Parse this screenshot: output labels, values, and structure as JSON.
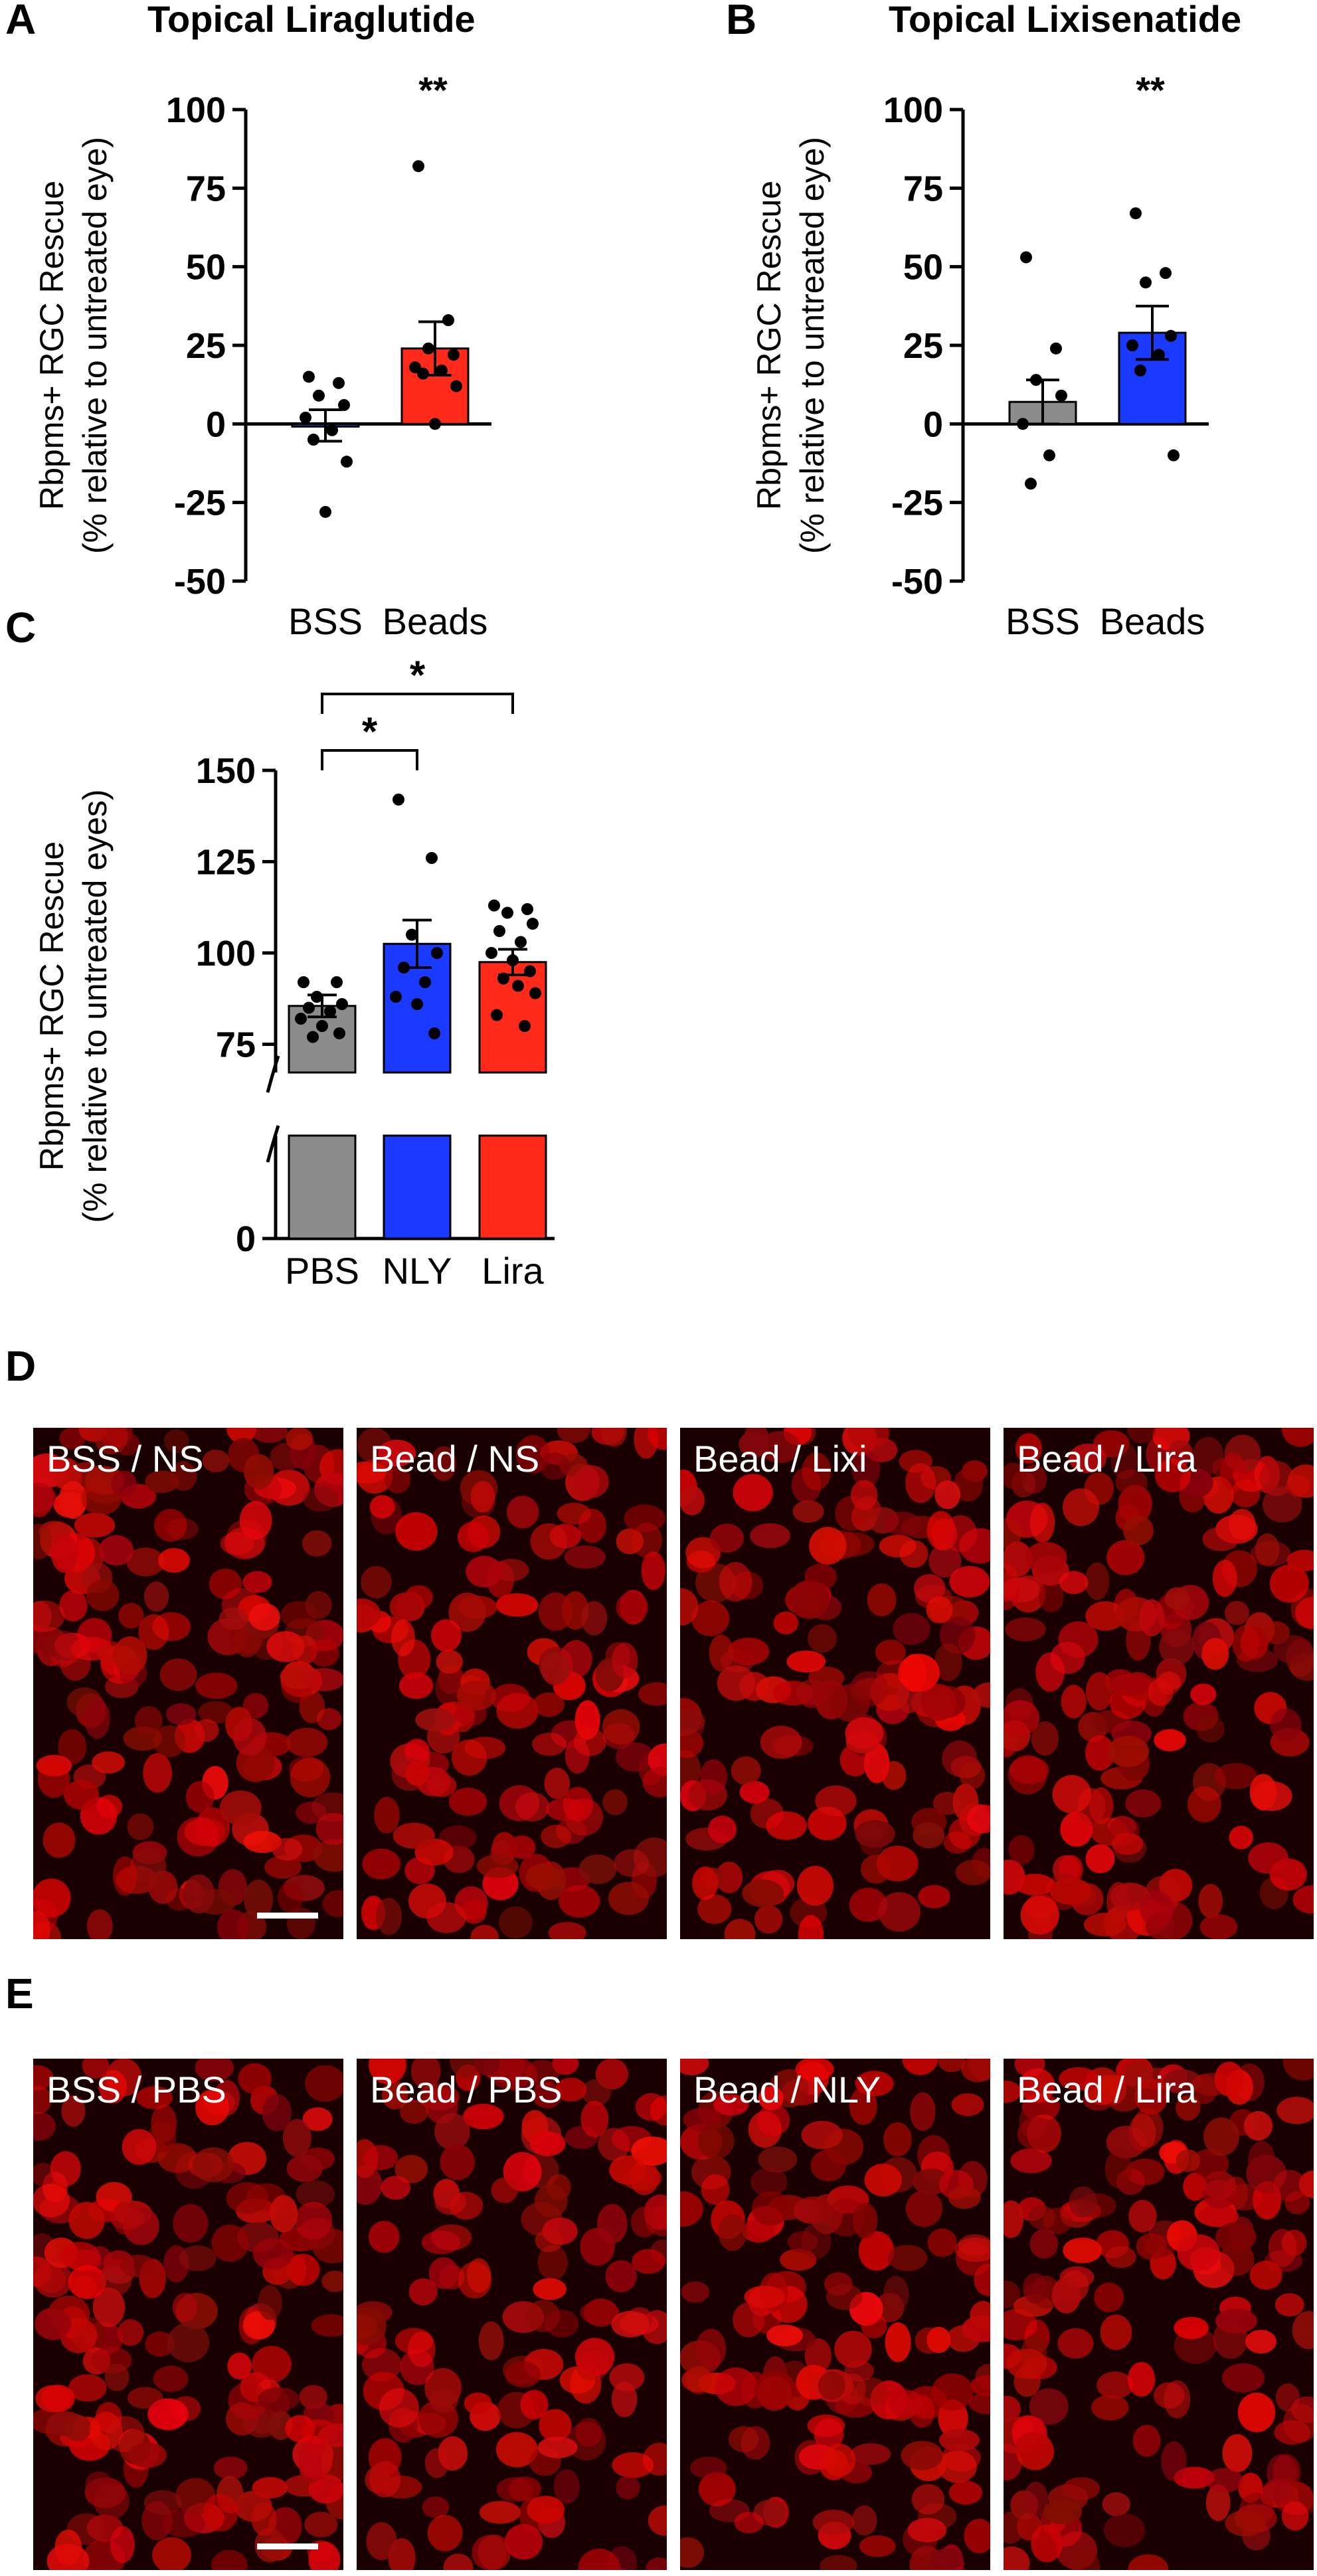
{
  "panels": {
    "a": {
      "letter": "A",
      "title": "Topical Liraglutide"
    },
    "b": {
      "letter": "B",
      "title": "Topical Lixisenatide"
    },
    "c": {
      "letter": "C"
    },
    "d": {
      "letter": "D"
    },
    "e": {
      "letter": "E"
    }
  },
  "chart_data": [
    {
      "id": "A",
      "type": "bar",
      "title": "Topical Liraglutide",
      "ylabel": [
        "Rbpms+ RGC Rescue",
        "(% relative to untreated eye)"
      ],
      "ylim": [
        -50,
        100
      ],
      "yticks": [
        100,
        75,
        50,
        25,
        0,
        -25,
        -50
      ],
      "categories": [
        "BSS",
        "Beads"
      ],
      "values": [
        -0.5,
        24
      ],
      "sem": [
        5,
        8.5
      ],
      "colors": [
        "#1a3fd8",
        "#ff2a1a"
      ],
      "points": [
        [
          15,
          13,
          9,
          6,
          2,
          -2,
          -5,
          -12,
          -28
        ],
        [
          82,
          33,
          24,
          22,
          18,
          17,
          16,
          12,
          0
        ]
      ],
      "significance": [
        "",
        "**"
      ]
    },
    {
      "id": "B",
      "type": "bar",
      "title": "Topical Lixisenatide",
      "ylabel": [
        "Rbpms+ RGC Rescue",
        "(% relative to untreated eye)"
      ],
      "ylim": [
        -50,
        100
      ],
      "yticks": [
        100,
        75,
        50,
        25,
        0,
        -25,
        -50
      ],
      "categories": [
        "BSS",
        "Beads"
      ],
      "values": [
        7,
        29
      ],
      "sem": [
        7,
        8.5
      ],
      "colors": [
        "#8c8c8c",
        "#1a3aff"
      ],
      "points": [
        [
          53,
          24,
          14,
          9,
          0,
          -10,
          -19
        ],
        [
          67,
          48,
          45,
          28,
          25,
          22,
          17,
          -10
        ]
      ],
      "significance": [
        "",
        "**"
      ]
    },
    {
      "id": "C",
      "type": "bar",
      "ylabel": [
        "Rbpms+ RGC Rescue",
        "(% relative to untreated eyes)"
      ],
      "ylim_upper": [
        60,
        150
      ],
      "yticks": [
        150,
        125,
        100,
        75,
        0
      ],
      "axis_break": true,
      "categories": [
        "PBS",
        "NLY",
        "Lira"
      ],
      "values": [
        85.5,
        102.5,
        97.5
      ],
      "sem": [
        3,
        6.5,
        3.5
      ],
      "colors": [
        "#8c8c8c",
        "#1a3aff",
        "#ff2a1a"
      ],
      "points": [
        [
          92,
          92,
          88,
          86,
          85,
          84,
          82,
          80,
          78,
          77
        ],
        [
          142,
          126,
          105,
          100,
          96,
          92,
          88,
          86,
          78
        ],
        [
          113,
          112,
          111,
          108,
          106,
          103,
          100,
          98,
          95,
          93,
          91,
          89,
          83,
          80
        ]
      ],
      "comparisons": [
        {
          "from": "PBS",
          "to": "NLY",
          "label": "*"
        },
        {
          "from": "PBS",
          "to": "Lira",
          "label": "*"
        }
      ]
    }
  ],
  "micrographs_d": [
    "BSS / NS",
    "Bead / NS",
    "Bead / Lixi",
    "Bead / Lira"
  ],
  "micrographs_e": [
    "BSS / PBS",
    "Bead / PBS",
    "Bead / NLY",
    "Bead / Lira"
  ],
  "colors": {
    "stain": "#e01010",
    "background": "#1a0000"
  }
}
